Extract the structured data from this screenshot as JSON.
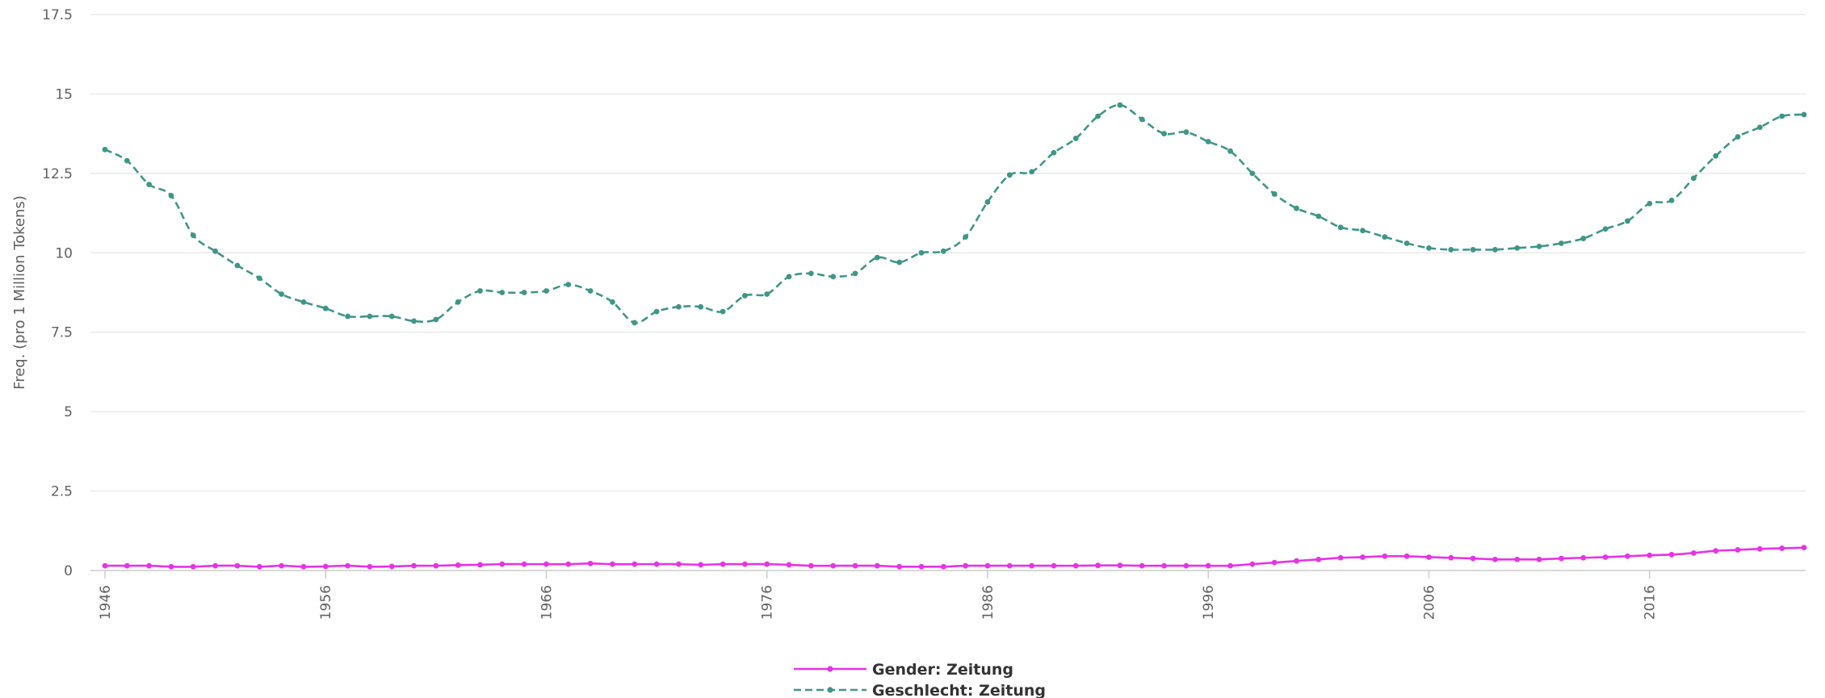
{
  "chart_data": {
    "type": "line",
    "ylabel": "Freq. (pro 1 Million Tokens)",
    "xlabel": "",
    "title": "",
    "ylim": [
      0,
      17.5
    ],
    "yticks": [
      0,
      2.5,
      5,
      7.5,
      10,
      12.5,
      15,
      17.5
    ],
    "ytick_labels": [
      "0",
      "2.5",
      "5",
      "7.5",
      "10",
      "12.5",
      "15",
      "17.5"
    ],
    "xlim": [
      1946,
      2023
    ],
    "xticks": [
      1946,
      1956,
      1966,
      1976,
      1986,
      1996,
      2006,
      2016
    ],
    "xtick_labels": [
      "1946",
      "1956",
      "1966",
      "1976",
      "1986",
      "1996",
      "2006",
      "2016"
    ],
    "grid": true,
    "legend": "bottom-center",
    "series": [
      {
        "name": "Gender: Zeitung",
        "color": "#e633e6",
        "dash": "solid",
        "x": [
          1946,
          1947,
          1948,
          1949,
          1950,
          1951,
          1952,
          1953,
          1954,
          1955,
          1956,
          1957,
          1958,
          1959,
          1960,
          1961,
          1962,
          1963,
          1964,
          1965,
          1966,
          1967,
          1968,
          1969,
          1970,
          1971,
          1972,
          1973,
          1974,
          1975,
          1976,
          1977,
          1978,
          1979,
          1980,
          1981,
          1982,
          1983,
          1984,
          1985,
          1986,
          1987,
          1988,
          1989,
          1990,
          1991,
          1992,
          1993,
          1994,
          1995,
          1996,
          1997,
          1998,
          1999,
          2000,
          2001,
          2002,
          2003,
          2004,
          2005,
          2006,
          2007,
          2008,
          2009,
          2010,
          2011,
          2012,
          2013,
          2014,
          2015,
          2016,
          2017,
          2018,
          2019,
          2020,
          2021,
          2022,
          2023
        ],
        "values": [
          0.15,
          0.15,
          0.15,
          0.12,
          0.12,
          0.15,
          0.15,
          0.12,
          0.15,
          0.12,
          0.13,
          0.15,
          0.12,
          0.13,
          0.15,
          0.15,
          0.17,
          0.18,
          0.2,
          0.2,
          0.2,
          0.2,
          0.22,
          0.2,
          0.2,
          0.2,
          0.2,
          0.18,
          0.2,
          0.2,
          0.2,
          0.18,
          0.15,
          0.15,
          0.15,
          0.15,
          0.12,
          0.12,
          0.12,
          0.15,
          0.15,
          0.15,
          0.15,
          0.15,
          0.15,
          0.16,
          0.16,
          0.15,
          0.15,
          0.15,
          0.15,
          0.15,
          0.2,
          0.25,
          0.3,
          0.35,
          0.4,
          0.42,
          0.45,
          0.45,
          0.42,
          0.4,
          0.38,
          0.35,
          0.35,
          0.35,
          0.38,
          0.4,
          0.42,
          0.45,
          0.48,
          0.5,
          0.55,
          0.62,
          0.65,
          0.68,
          0.7,
          0.72
        ]
      },
      {
        "name": "Geschlecht: Zeitung",
        "color": "#3d9688",
        "dash": "dashed",
        "x": [
          1946,
          1947,
          1948,
          1949,
          1950,
          1951,
          1952,
          1953,
          1954,
          1955,
          1956,
          1957,
          1958,
          1959,
          1960,
          1961,
          1962,
          1963,
          1964,
          1965,
          1966,
          1967,
          1968,
          1969,
          1970,
          1971,
          1972,
          1973,
          1974,
          1975,
          1976,
          1977,
          1978,
          1979,
          1980,
          1981,
          1982,
          1983,
          1984,
          1985,
          1986,
          1987,
          1988,
          1989,
          1990,
          1991,
          1992,
          1993,
          1994,
          1995,
          1996,
          1997,
          1998,
          1999,
          2000,
          2001,
          2002,
          2003,
          2004,
          2005,
          2006,
          2007,
          2008,
          2009,
          2010,
          2011,
          2012,
          2013,
          2014,
          2015,
          2016,
          2017,
          2018,
          2019,
          2020,
          2021,
          2022,
          2023
        ],
        "values": [
          13.25,
          12.9,
          12.15,
          11.8,
          10.55,
          10.05,
          9.6,
          9.2,
          8.7,
          8.45,
          8.25,
          8.0,
          8.0,
          8.0,
          7.85,
          7.9,
          8.45,
          8.8,
          8.75,
          8.75,
          8.8,
          9.0,
          8.8,
          8.45,
          7.8,
          8.15,
          8.3,
          8.3,
          8.15,
          8.65,
          8.7,
          9.25,
          9.35,
          9.25,
          9.35,
          9.85,
          9.7,
          10.0,
          10.05,
          10.5,
          11.6,
          12.45,
          12.55,
          13.15,
          13.6,
          14.3,
          14.65,
          14.2,
          13.75,
          13.8,
          13.5,
          13.2,
          12.5,
          11.85,
          11.4,
          11.15,
          10.8,
          10.7,
          10.5,
          10.3,
          10.15,
          10.1,
          10.1,
          10.1,
          10.15,
          10.2,
          10.3,
          10.45,
          10.75,
          11.0,
          11.55,
          11.65,
          12.35,
          13.05,
          13.65,
          13.95,
          14.3,
          14.35
        ]
      }
    ]
  }
}
